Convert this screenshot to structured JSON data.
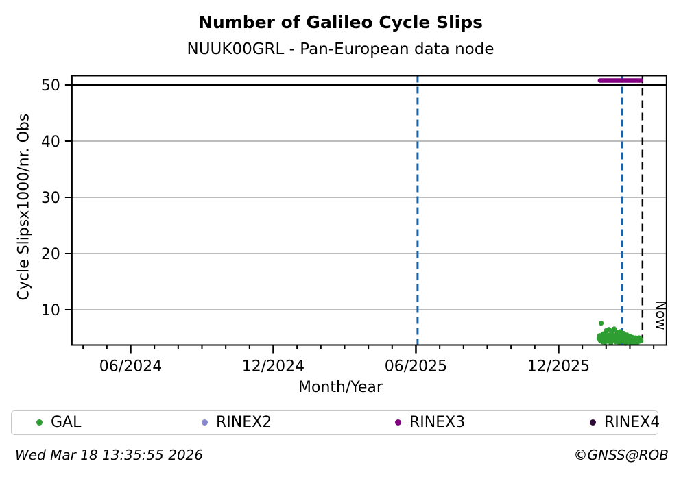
{
  "header": {
    "title": "Number of Galileo Cycle Slips",
    "subtitle": "NUUK00GRL - Pan-European data node"
  },
  "footer": {
    "timestamp": "Wed Mar 18 13:35:55 2026",
    "credit": "©GNSS@ROB"
  },
  "legend": {
    "items": [
      {
        "label": "GAL",
        "color": "#2f9e32"
      },
      {
        "label": "RINEX2",
        "color": "#8888cc"
      },
      {
        "label": "RINEX3",
        "color": "#800080"
      },
      {
        "label": "RINEX4",
        "color": "#2e0b38"
      }
    ]
  },
  "chart_data": {
    "type": "scatter",
    "title": "Number of Galileo Cycle Slips",
    "subtitle": "NUUK00GRL - Pan-European data node",
    "xlabel": "Month/Year",
    "ylabel": "Cycle Slipsx1000/nr. Obs",
    "x_unit": "months_since_2024-01-01",
    "xlim": [
      2.53,
      27.54
    ],
    "ylim": [
      3.72,
      51.65
    ],
    "grid": true,
    "grid_color": "#b3b3b3",
    "yticks": [
      10,
      20,
      30,
      40,
      50
    ],
    "xticks_major": [
      {
        "m": 5,
        "label": "06/2024"
      },
      {
        "m": 11,
        "label": "12/2024"
      },
      {
        "m": 17,
        "label": "06/2025"
      },
      {
        "m": 23,
        "label": "12/2025"
      }
    ],
    "xticks_minor_range": [
      3,
      27
    ],
    "hline": {
      "y": 50,
      "color": "#000000"
    },
    "vlines": [
      {
        "m": 17.07,
        "color": "#1464b4",
        "style": "dashed",
        "label": ""
      },
      {
        "m": 25.67,
        "color": "#1464b4",
        "style": "dashed",
        "label": ""
      },
      {
        "m": 26.53,
        "color": "#000000",
        "style": "dashed",
        "label": "Now"
      }
    ],
    "now_label": "Now",
    "legend_position": "bottom",
    "series": [
      {
        "name": "GAL",
        "color": "#2f9e32",
        "marker": "dot",
        "points": [
          [
            24.7,
            4.9
          ],
          [
            24.73,
            5.4
          ],
          [
            24.76,
            4.5
          ],
          [
            24.79,
            7.6
          ],
          [
            24.81,
            5.1
          ],
          [
            24.84,
            4.3
          ],
          [
            24.87,
            5.7
          ],
          [
            24.9,
            4.7
          ],
          [
            24.92,
            5.2
          ],
          [
            24.95,
            4.2
          ],
          [
            24.98,
            5.9
          ],
          [
            25.01,
            6.3
          ],
          [
            25.04,
            5.0
          ],
          [
            25.06,
            4.4
          ],
          [
            25.09,
            5.5
          ],
          [
            25.12,
            6.5
          ],
          [
            25.15,
            4.8
          ],
          [
            25.18,
            5.2
          ],
          [
            25.2,
            4.1
          ],
          [
            25.23,
            5.8
          ],
          [
            25.26,
            6.2
          ],
          [
            25.29,
            4.6
          ],
          [
            25.32,
            5.1
          ],
          [
            25.34,
            6.6
          ],
          [
            25.37,
            5.4
          ],
          [
            25.4,
            4.3
          ],
          [
            25.43,
            5.0
          ],
          [
            25.46,
            6.0
          ],
          [
            25.48,
            4.7
          ],
          [
            25.51,
            5.6
          ],
          [
            25.54,
            4.2
          ],
          [
            25.57,
            5.2
          ],
          [
            25.6,
            6.1
          ],
          [
            25.62,
            4.8
          ],
          [
            25.65,
            5.4
          ],
          [
            25.68,
            4.4
          ],
          [
            25.71,
            5.0
          ],
          [
            25.74,
            5.8
          ],
          [
            25.76,
            4.5
          ],
          [
            25.79,
            5.2
          ],
          [
            25.82,
            4.0
          ],
          [
            25.85,
            4.8
          ],
          [
            25.88,
            5.5
          ],
          [
            25.9,
            4.3
          ],
          [
            25.93,
            5.0
          ],
          [
            25.96,
            4.6
          ],
          [
            25.99,
            5.3
          ],
          [
            26.02,
            4.2
          ],
          [
            26.04,
            4.9
          ],
          [
            26.07,
            4.5
          ],
          [
            26.1,
            5.1
          ],
          [
            26.13,
            4.3
          ],
          [
            26.16,
            4.8
          ],
          [
            26.18,
            4.1
          ],
          [
            26.21,
            4.6
          ],
          [
            26.24,
            5.0
          ],
          [
            26.27,
            4.4
          ],
          [
            26.3,
            4.8
          ],
          [
            26.32,
            4.2
          ],
          [
            26.35,
            4.6
          ],
          [
            26.38,
            5.0
          ],
          [
            26.41,
            4.4
          ],
          [
            26.44,
            4.8
          ],
          [
            26.47,
            4.5
          ]
        ]
      },
      {
        "name": "RINEX2",
        "color": "#8888cc",
        "marker": "dot",
        "points": []
      },
      {
        "name": "RINEX3",
        "color": "#800080",
        "marker": "thick-line",
        "segment": {
          "m_start": 24.74,
          "m_end": 26.45,
          "y": 50.8
        },
        "points": []
      },
      {
        "name": "RINEX4",
        "color": "#2e0b38",
        "marker": "dot",
        "points": []
      }
    ]
  }
}
